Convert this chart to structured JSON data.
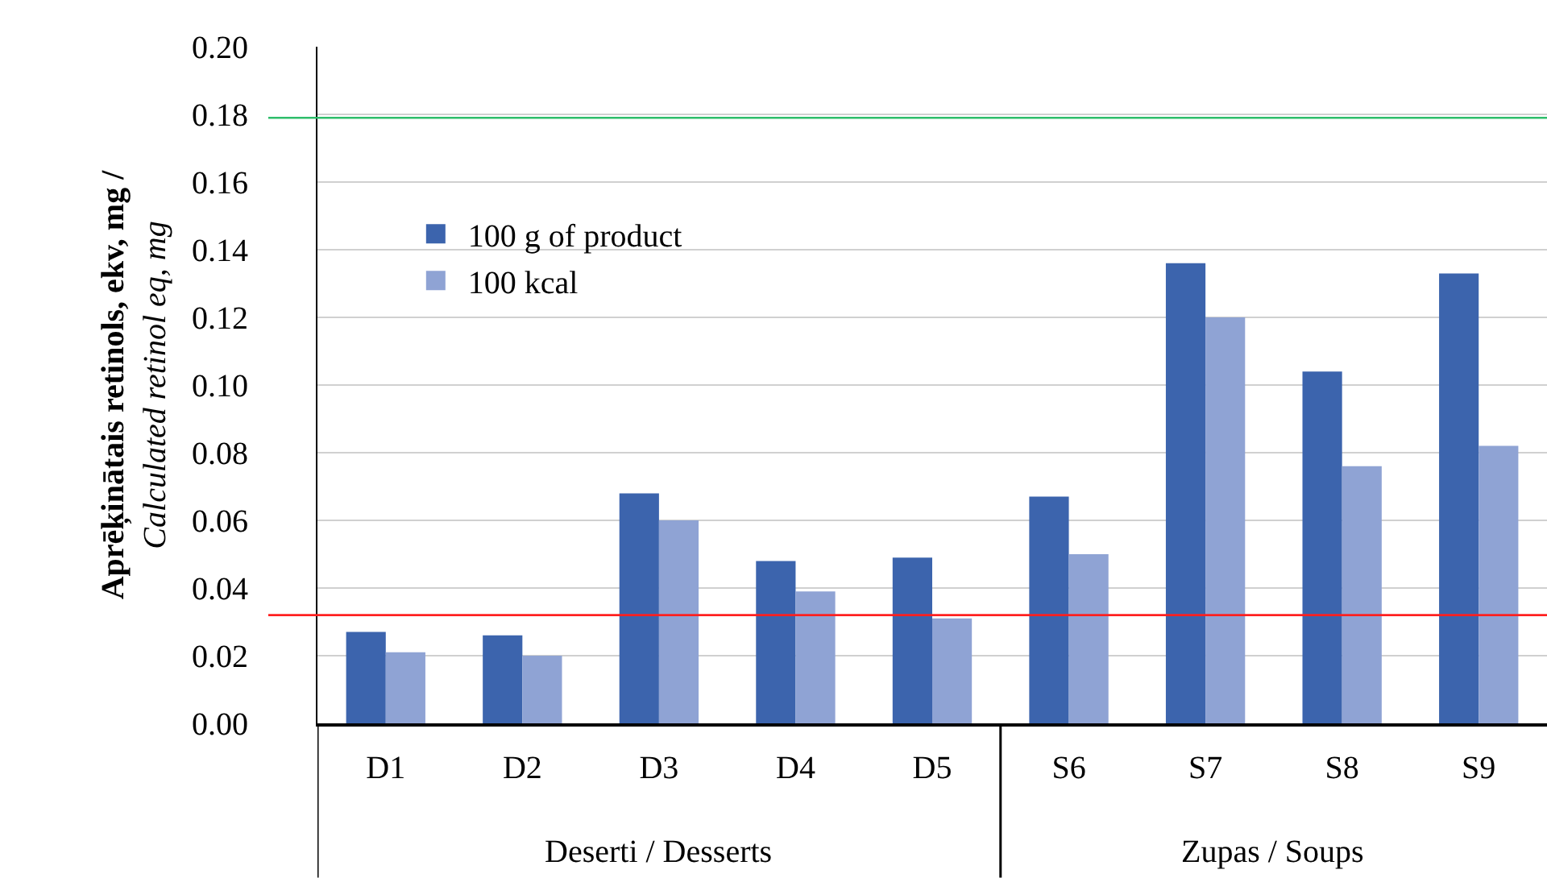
{
  "chart_data": {
    "type": "bar",
    "ylabel": "Aprēķinātais retinols, ekv, mg /\nCalculated retinol eq, mg",
    "categories": [
      "D1",
      "D2",
      "D3",
      "D4",
      "D5",
      "S6",
      "S7",
      "S8",
      "S9"
    ],
    "series": [
      {
        "name": "100 g of product",
        "color": "#3c64ad",
        "values": [
          0.027,
          0.026,
          0.068,
          0.048,
          0.049,
          0.067,
          0.136,
          0.104,
          0.133
        ]
      },
      {
        "name": "100 kcal",
        "color": "#8fa3d4",
        "values": [
          0.021,
          0.02,
          0.06,
          0.039,
          0.031,
          0.05,
          0.12,
          0.076,
          0.082
        ]
      }
    ],
    "ylim": [
      0,
      0.2
    ],
    "yticks": [
      {
        "value": 0,
        "label": "0.00"
      },
      0.02,
      0.04,
      0.06,
      0.08,
      {
        "value": 0.1,
        "label": "0.10"
      },
      0.12,
      0.14,
      0.16,
      0.18,
      {
        "value": 0.2,
        "label": "0.20"
      }
    ],
    "ref_lines": [
      {
        "axis": "y",
        "value": 0.179,
        "color": "#2ebd6b"
      },
      {
        "axis": "y",
        "value": 0.032,
        "color": "#ff2020"
      }
    ],
    "annotations": [
      "Deserti / Desserts",
      "Zupas / Soups"
    ],
    "grid": "y",
    "legend": "top left"
  }
}
